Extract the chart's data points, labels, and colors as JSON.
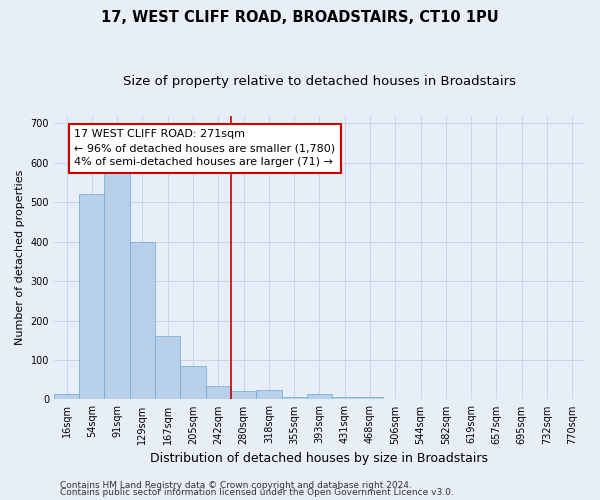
{
  "title": "17, WEST CLIFF ROAD, BROADSTAIRS, CT10 1PU",
  "subtitle": "Size of property relative to detached houses in Broadstairs",
  "xlabel": "Distribution of detached houses by size in Broadstairs",
  "ylabel": "Number of detached properties",
  "bin_labels": [
    "16sqm",
    "54sqm",
    "91sqm",
    "129sqm",
    "167sqm",
    "205sqm",
    "242sqm",
    "280sqm",
    "318sqm",
    "355sqm",
    "393sqm",
    "431sqm",
    "468sqm",
    "506sqm",
    "544sqm",
    "582sqm",
    "619sqm",
    "657sqm",
    "695sqm",
    "732sqm",
    "770sqm"
  ],
  "bar_heights": [
    14,
    522,
    578,
    400,
    160,
    85,
    33,
    22,
    24,
    7,
    13,
    5,
    5,
    0,
    0,
    0,
    0,
    0,
    0,
    0,
    0
  ],
  "bar_color": "#b8d0ea",
  "bar_edge_color": "#6aaad4",
  "grid_color": "#c8d4e8",
  "bg_color": "#e8eef8",
  "vline_x": 6.5,
  "vline_color": "#cc0000",
  "annotation_line1": "17 WEST CLIFF ROAD: 271sqm",
  "annotation_line2": "← 96% of detached houses are smaller (1,780)",
  "annotation_line3": "4% of semi-detached houses are larger (71) →",
  "annotation_box_color": "#ffffff",
  "annotation_box_edge_color": "#cc0000",
  "ylim": [
    0,
    720
  ],
  "yticks": [
    0,
    100,
    200,
    300,
    400,
    500,
    600,
    700
  ],
  "footnote1": "Contains HM Land Registry data © Crown copyright and database right 2024.",
  "footnote2": "Contains public sector information licensed under the Open Government Licence v3.0.",
  "title_fontsize": 10.5,
  "subtitle_fontsize": 9.5,
  "xlabel_fontsize": 9,
  "ylabel_fontsize": 8,
  "tick_fontsize": 7,
  "annotation_fontsize": 8,
  "footnote_fontsize": 6.5
}
